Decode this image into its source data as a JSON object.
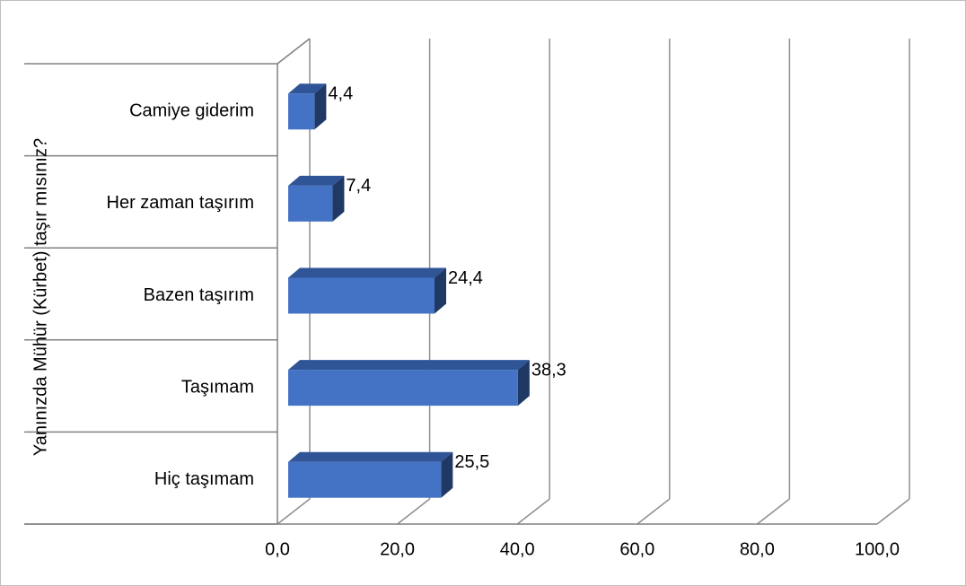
{
  "chart_data": {
    "type": "bar",
    "orientation": "horizontal",
    "3d": true,
    "categories": [
      "Camiye giderim",
      "Her zaman taşırım",
      "Bazen taşırım",
      "Taşımam",
      "Hiç taşımam"
    ],
    "values": [
      4.4,
      7.4,
      24.4,
      38.3,
      25.5
    ],
    "data_labels": [
      "4,4",
      "7,4",
      "24,4",
      "38,3",
      "25,5"
    ],
    "ylabel": "Yanınızda Mühür (Kürbet) taşır mısınız?",
    "xlabel": "",
    "xlim": [
      0,
      100
    ],
    "x_ticks": [
      "0,0",
      "20,0",
      "40,0",
      "60,0",
      "80,0",
      "100,0"
    ],
    "grid": true,
    "legend": "none",
    "colors": {
      "bar_front": "#4472C4",
      "bar_top": "#2F5597",
      "bar_side": "#1F3864",
      "grid": "#8F8F8F",
      "axis": "#808080",
      "text": "#000000",
      "frame": "#BFBFBF"
    }
  }
}
